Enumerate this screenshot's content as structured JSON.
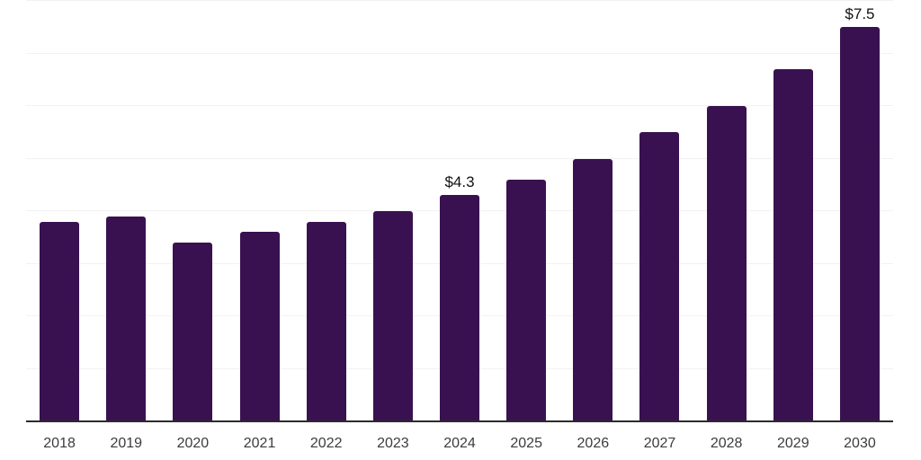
{
  "page": {
    "background": "#FFFFFF"
  },
  "chart_data": {
    "type": "bar",
    "title": "",
    "xlabel": "",
    "ylabel": "",
    "categories": [
      "2018",
      "2019",
      "2020",
      "2021",
      "2022",
      "2023",
      "2024",
      "2025",
      "2026",
      "2027",
      "2028",
      "2029",
      "2030"
    ],
    "values": [
      3.8,
      3.9,
      3.4,
      3.6,
      3.8,
      4.0,
      4.3,
      4.6,
      5.0,
      5.5,
      6.0,
      6.7,
      7.5
    ],
    "point_labels": {
      "2024": "$4.3",
      "2030": "$7.5"
    },
    "ylim": [
      0,
      8
    ],
    "gridline_interval": 1,
    "grid_visible": true,
    "legend_position": "none",
    "colors": {
      "bar": "#3A1150",
      "gridline": "#F2F2F2",
      "axis_line": "#2B2B2B",
      "tick_label": "#3C3C3C",
      "data_label": "#111111",
      "background": "#FFFFFF"
    }
  }
}
